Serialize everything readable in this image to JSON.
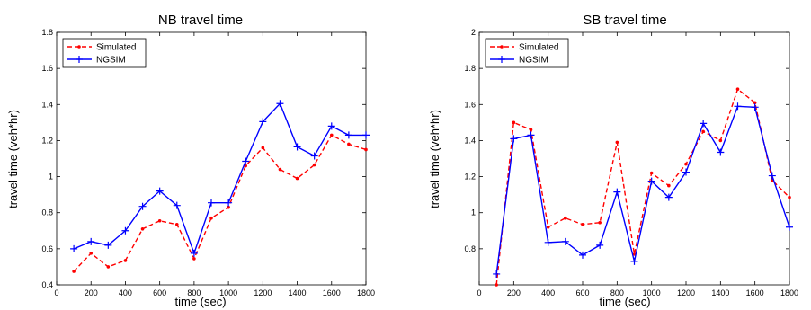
{
  "chart_data": [
    {
      "type": "line",
      "title": "NB travel time",
      "xlabel": "time (sec)",
      "ylabel": "travel time (veh*hr)",
      "xlim": [
        0,
        1800
      ],
      "ylim": [
        0.4,
        1.8
      ],
      "xticks": [
        0,
        200,
        400,
        600,
        800,
        1000,
        1200,
        1400,
        1600,
        1800
      ],
      "yticks": [
        0.4,
        0.6,
        0.8,
        1,
        1.2,
        1.4,
        1.6,
        1.8
      ],
      "legend_position": "top-left",
      "x": [
        100,
        200,
        300,
        400,
        500,
        600,
        700,
        800,
        900,
        1000,
        1100,
        1200,
        1300,
        1400,
        1500,
        1600,
        1700,
        1800
      ],
      "series": [
        {
          "name": "Simulated",
          "color": "#ff0000",
          "style": "dashed",
          "marker": "dot",
          "values": [
            0.475,
            0.575,
            0.5,
            0.535,
            0.71,
            0.755,
            0.735,
            0.545,
            0.77,
            0.83,
            1.06,
            1.16,
            1.04,
            0.99,
            1.065,
            1.23,
            1.18,
            1.15
          ]
        },
        {
          "name": "NGSIM",
          "color": "#0000ff",
          "style": "solid",
          "marker": "plus",
          "values": [
            0.6,
            0.64,
            0.62,
            0.7,
            0.835,
            0.92,
            0.84,
            0.575,
            0.855,
            0.855,
            1.085,
            1.305,
            1.405,
            1.165,
            1.115,
            1.28,
            1.23,
            1.23
          ]
        }
      ]
    },
    {
      "type": "line",
      "title": "SB travel time",
      "xlabel": "time (sec)",
      "ylabel": "travel time (veh*hr)",
      "xlim": [
        0,
        1800
      ],
      "ylim": [
        0.6,
        2
      ],
      "xticks": [
        0,
        200,
        400,
        600,
        800,
        1000,
        1200,
        1400,
        1600,
        1800
      ],
      "yticks": [
        0.8,
        1,
        1.2,
        1.4,
        1.6,
        1.8,
        2
      ],
      "legend_position": "top-left",
      "x": [
        100,
        200,
        300,
        400,
        500,
        600,
        700,
        800,
        900,
        1000,
        1100,
        1200,
        1300,
        1400,
        1500,
        1600,
        1700,
        1800
      ],
      "series": [
        {
          "name": "Simulated",
          "color": "#ff0000",
          "style": "dashed",
          "marker": "dot",
          "values": [
            0.6,
            1.5,
            1.46,
            0.92,
            0.97,
            0.935,
            0.945,
            1.39,
            0.77,
            1.22,
            1.15,
            1.27,
            1.45,
            1.4,
            1.685,
            1.61,
            1.18,
            1.085
          ]
        },
        {
          "name": "NGSIM",
          "color": "#0000ff",
          "style": "solid",
          "marker": "plus",
          "values": [
            0.66,
            1.41,
            1.43,
            0.835,
            0.84,
            0.765,
            0.82,
            1.115,
            0.73,
            1.175,
            1.085,
            1.225,
            1.495,
            1.335,
            1.59,
            1.585,
            1.205,
            0.92
          ]
        }
      ]
    }
  ]
}
